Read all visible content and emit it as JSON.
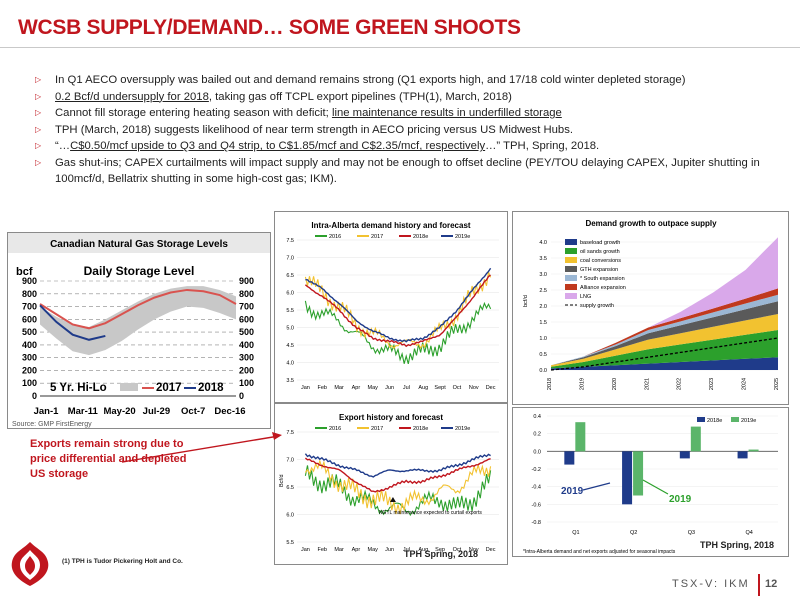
{
  "slide": {
    "title": "WCSB SUPPLY/DEMAND… SOME GREEN SHOOTS",
    "bullets": [
      {
        "pre": "In Q1 AECO oversupply was bailed out and demand remains strong (Q1 exports high, and 17/18 cold winter depleted storage)",
        "u": "",
        "post": ""
      },
      {
        "pre": "",
        "u": "0.2 Bcf/d undersupply for 2018",
        "post": ", taking gas off TCPL export pipelines (TPH(1), March, 2018)"
      },
      {
        "pre": "Cannot fill storage entering heating season with deficit; ",
        "u": "line maintenance results in underfilled storage",
        "post": ""
      },
      {
        "pre": "TPH (March, 2018) suggests likelihood of near term strength in AECO pricing versus US Midwest Hubs.",
        "u": "",
        "post": ""
      },
      {
        "pre": "“…",
        "u": "C$0.50/mcf upside to Q3 and Q4 strip, to C$1.85/mcf and C$2.35/mcf, respectively",
        "post": "…” TPH, Spring, 2018."
      },
      {
        "pre": "Gas shut-ins; CAPEX curtailments will impact supply and may not be enough to offset decline (PEY/TOU delaying CAPEX, Jupiter shutting in 100mcf/d, Bellatrix shutting in some high-cost gas; IKM).",
        "u": "",
        "post": ""
      }
    ],
    "annotation": "Exports remain strong due to price differential and depleted US storage",
    "footnote": "(1) TPH is Tudor Pickering Holt and Co.",
    "ticker": "TSX-V: IKM",
    "page": "12",
    "source_tph1": "TPH Spring, 2018",
    "source_tph2": "TPH Spring, 2018",
    "colors": {
      "accent": "#c0161e",
      "y2016": "#2ca02c",
      "y2017": "#f2c230",
      "y2018e": "#c0161e",
      "y2019e": "#1f3b8a"
    }
  },
  "chart_data": [
    {
      "type": "area",
      "header": "Canadian Natural Gas Storage Levels",
      "title": "Daily Storage Level",
      "ylabel": "bcf",
      "ylim": [
        0,
        900
      ],
      "yticks": [
        "0",
        "100",
        "200",
        "300",
        "400",
        "500",
        "600",
        "700",
        "800",
        "900"
      ],
      "xticks": [
        "Jan-1",
        "Mar-11",
        "May-20",
        "Jul-29",
        "Oct-7",
        "Dec-16"
      ],
      "legend": [
        "5 Yr. Hi-Lo",
        "2017",
        "2018"
      ],
      "source": "Source: GMP FirstEnergy",
      "x": [
        0,
        1,
        2,
        3,
        4,
        5,
        6,
        7,
        8,
        9,
        10,
        11,
        12
      ],
      "band_high": [
        700,
        620,
        560,
        540,
        600,
        670,
        740,
        800,
        840,
        860,
        860,
        830,
        780
      ],
      "band_low": [
        560,
        450,
        350,
        320,
        360,
        430,
        520,
        600,
        660,
        700,
        690,
        650,
        600
      ],
      "series": [
        {
          "name": "2017",
          "values": [
            720,
            640,
            560,
            530,
            570,
            640,
            710,
            770,
            810,
            830,
            820,
            790,
            720
          ]
        },
        {
          "name": "2018",
          "values": [
            710,
            580,
            480,
            440,
            470,
            null,
            null,
            null,
            null,
            null,
            null,
            null,
            null
          ]
        }
      ]
    },
    {
      "type": "line",
      "title": "Intra-Alberta demand history and forecast",
      "ylim": [
        3.5,
        7.5
      ],
      "yticks": [
        "3.5",
        "4.0",
        "4.5",
        "5.0",
        "5.5",
        "6.0",
        "6.5",
        "7.0",
        "7.5"
      ],
      "categories": [
        "Jan",
        "Feb",
        "Mar",
        "Apr",
        "May",
        "Jun",
        "Jul",
        "Aug",
        "Sept",
        "Oct",
        "Nov",
        "Dec"
      ],
      "series": [
        {
          "name": "2016",
          "values": [
            5.6,
            5.4,
            5.2,
            4.8,
            4.5,
            4.3,
            4.2,
            4.3,
            4.5,
            4.9,
            5.3,
            5.6
          ]
        },
        {
          "name": "2017",
          "values": [
            6.4,
            6.0,
            5.6,
            5.1,
            4.8,
            4.6,
            4.5,
            4.6,
            4.9,
            5.4,
            6.0,
            6.6
          ]
        },
        {
          "name": "2018e",
          "values": [
            6.2,
            5.9,
            5.5,
            5.0,
            4.7,
            4.6,
            4.5,
            4.6,
            4.8,
            5.3,
            5.9,
            6.5
          ]
        },
        {
          "name": "2019e",
          "values": [
            6.4,
            6.1,
            5.7,
            5.2,
            4.9,
            4.7,
            4.6,
            4.7,
            5.0,
            5.5,
            6.1,
            6.7
          ]
        }
      ]
    },
    {
      "type": "line",
      "title": "Export history and forecast",
      "ylabel": "Bcf/d",
      "ylim": [
        5.5,
        7.5
      ],
      "yticks": [
        "5.5",
        "6.0",
        "6.5",
        "7.0",
        "7.5"
      ],
      "categories": [
        "Jan",
        "Feb",
        "Mar",
        "Apr",
        "May",
        "Jun",
        "Jul",
        "Aug",
        "Sep",
        "Oct",
        "Nov",
        "Dec"
      ],
      "annotation": "NGTL maintenance expected to curtail exports",
      "series": [
        {
          "name": "2016",
          "values": [
            6.7,
            6.6,
            6.5,
            6.3,
            6.2,
            6.1,
            6.1,
            6.2,
            6.3,
            6.1,
            6.3,
            6.6
          ]
        },
        {
          "name": "2017",
          "values": [
            6.9,
            6.8,
            6.6,
            6.4,
            6.3,
            6.2,
            6.2,
            6.3,
            6.4,
            6.5,
            6.7,
            6.9
          ]
        },
        {
          "name": "2018e",
          "values": [
            7.0,
            6.9,
            6.8,
            6.6,
            6.4,
            6.5,
            6.6,
            6.6,
            6.7,
            6.8,
            6.9,
            7.0
          ]
        },
        {
          "name": "2019e",
          "values": [
            7.1,
            7.0,
            6.9,
            6.8,
            6.7,
            6.8,
            6.8,
            6.8,
            6.8,
            6.9,
            7.0,
            7.1
          ]
        }
      ]
    },
    {
      "type": "area",
      "title": "Demand growth to outpace supply",
      "ylabel": "bcf/d",
      "ylim": [
        0,
        4.0
      ],
      "yticks": [
        "0.0",
        "0.5",
        "1.0",
        "1.5",
        "2.0",
        "2.5",
        "3.0",
        "3.5",
        "4.0"
      ],
      "categories": [
        "2018",
        "2019",
        "2020",
        "2021",
        "2022",
        "2023",
        "2024",
        "2025"
      ],
      "legend": [
        "baseload growth",
        "oil sands growth",
        "coal conversions",
        "GTH expansion",
        "* South expansion",
        "Alliance expansion",
        "LNG",
        "supply growth"
      ],
      "series": [
        {
          "name": "baseload growth",
          "values": [
            0.05,
            0.1,
            0.15,
            0.2,
            0.25,
            0.3,
            0.35,
            0.4
          ]
        },
        {
          "name": "oil sands growth",
          "values": [
            0.05,
            0.15,
            0.3,
            0.45,
            0.55,
            0.65,
            0.75,
            0.85
          ]
        },
        {
          "name": "coal conversions",
          "values": [
            0.05,
            0.1,
            0.2,
            0.3,
            0.35,
            0.4,
            0.45,
            0.5
          ]
        },
        {
          "name": "GTH expansion",
          "values": [
            0.0,
            0.05,
            0.1,
            0.2,
            0.25,
            0.3,
            0.35,
            0.4
          ]
        },
        {
          "name": "* South expansion",
          "values": [
            0.0,
            0.02,
            0.05,
            0.1,
            0.12,
            0.15,
            0.18,
            0.2
          ]
        },
        {
          "name": "Alliance expansion",
          "values": [
            0.0,
            0.0,
            0.05,
            0.08,
            0.1,
            0.12,
            0.15,
            0.2
          ]
        },
        {
          "name": "LNG",
          "values": [
            0.0,
            0.0,
            0.0,
            0.0,
            0.2,
            0.5,
            0.9,
            1.6
          ]
        },
        {
          "name": "supply growth",
          "values": [
            0.0,
            0.1,
            0.25,
            0.4,
            0.55,
            0.7,
            0.85,
            1.0
          ]
        }
      ]
    },
    {
      "type": "bar",
      "ylim": [
        -0.8,
        0.4
      ],
      "yticks": [
        "0.4",
        "0.2",
        "0.0",
        "-0.2",
        "-0.4",
        "-0.6",
        "-0.8"
      ],
      "categories": [
        "Q1",
        "Q2",
        "Q3",
        "Q4"
      ],
      "legend": [
        "2018e",
        "2019e"
      ],
      "label1": "2019",
      "label2": "2019",
      "note": "*Intra-Alberta demand and net exports adjusted for seasonal impacts",
      "series": [
        {
          "name": "2018e",
          "values": [
            -0.15,
            -0.6,
            -0.08,
            -0.08
          ]
        },
        {
          "name": "2019e",
          "values": [
            0.33,
            -0.5,
            0.28,
            0.02
          ]
        }
      ]
    }
  ]
}
